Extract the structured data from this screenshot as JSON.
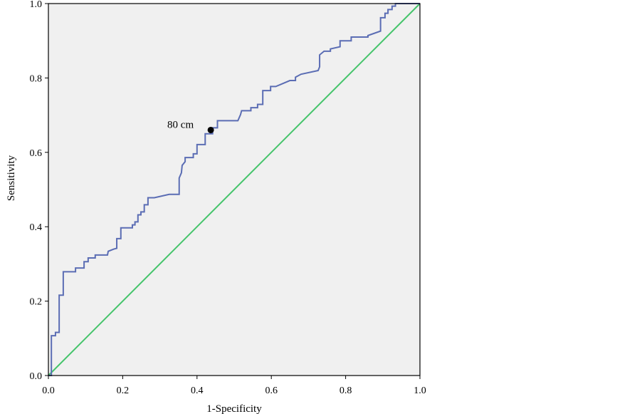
{
  "chart_data": {
    "type": "line",
    "xlabel": "1-Specificity",
    "ylabel": "Sensitivity",
    "xlim": [
      0.0,
      1.0
    ],
    "ylim": [
      0.0,
      1.0
    ],
    "x_ticks": [
      "0.0",
      "0.2",
      "0.4",
      "0.6",
      "0.8",
      "1.0"
    ],
    "y_ticks": [
      "0.0",
      "0.2",
      "0.4",
      "0.6",
      "0.8",
      "1.0"
    ],
    "grid": false,
    "plot_background": "#f0f0f0",
    "series": [
      {
        "color": "#5b6db4",
        "style": "step",
        "points": [
          [
            0.0,
            0.0
          ],
          [
            0.008,
            0.0
          ],
          [
            0.008,
            0.107
          ],
          [
            0.019,
            0.107
          ],
          [
            0.019,
            0.116
          ],
          [
            0.029,
            0.116
          ],
          [
            0.029,
            0.216
          ],
          [
            0.04,
            0.216
          ],
          [
            0.04,
            0.279
          ],
          [
            0.073,
            0.279
          ],
          [
            0.073,
            0.289
          ],
          [
            0.096,
            0.289
          ],
          [
            0.096,
            0.306
          ],
          [
            0.107,
            0.306
          ],
          [
            0.107,
            0.316
          ],
          [
            0.126,
            0.316
          ],
          [
            0.126,
            0.324
          ],
          [
            0.159,
            0.324
          ],
          [
            0.161,
            0.334
          ],
          [
            0.176,
            0.34
          ],
          [
            0.184,
            0.342
          ],
          [
            0.184,
            0.368
          ],
          [
            0.195,
            0.368
          ],
          [
            0.195,
            0.397
          ],
          [
            0.226,
            0.397
          ],
          [
            0.226,
            0.405
          ],
          [
            0.233,
            0.405
          ],
          [
            0.233,
            0.413
          ],
          [
            0.241,
            0.413
          ],
          [
            0.241,
            0.432
          ],
          [
            0.249,
            0.432
          ],
          [
            0.249,
            0.44
          ],
          [
            0.258,
            0.44
          ],
          [
            0.258,
            0.459
          ],
          [
            0.268,
            0.459
          ],
          [
            0.268,
            0.478
          ],
          [
            0.285,
            0.478
          ],
          [
            0.325,
            0.487
          ],
          [
            0.352,
            0.487
          ],
          [
            0.352,
            0.531
          ],
          [
            0.358,
            0.545
          ],
          [
            0.36,
            0.565
          ],
          [
            0.368,
            0.575
          ],
          [
            0.368,
            0.586
          ],
          [
            0.39,
            0.586
          ],
          [
            0.39,
            0.596
          ],
          [
            0.4,
            0.596
          ],
          [
            0.4,
            0.621
          ],
          [
            0.422,
            0.621
          ],
          [
            0.422,
            0.65
          ],
          [
            0.442,
            0.65
          ],
          [
            0.442,
            0.666
          ],
          [
            0.455,
            0.666
          ],
          [
            0.455,
            0.685
          ],
          [
            0.51,
            0.685
          ],
          [
            0.517,
            0.701
          ],
          [
            0.52,
            0.712
          ],
          [
            0.545,
            0.712
          ],
          [
            0.545,
            0.72
          ],
          [
            0.563,
            0.72
          ],
          [
            0.563,
            0.729
          ],
          [
            0.577,
            0.729
          ],
          [
            0.577,
            0.766
          ],
          [
            0.598,
            0.766
          ],
          [
            0.598,
            0.777
          ],
          [
            0.612,
            0.777
          ],
          [
            0.65,
            0.793
          ],
          [
            0.665,
            0.793
          ],
          [
            0.665,
            0.802
          ],
          [
            0.68,
            0.81
          ],
          [
            0.726,
            0.82
          ],
          [
            0.73,
            0.83
          ],
          [
            0.73,
            0.862
          ],
          [
            0.742,
            0.872
          ],
          [
            0.759,
            0.872
          ],
          [
            0.759,
            0.878
          ],
          [
            0.785,
            0.884
          ],
          [
            0.785,
            0.9
          ],
          [
            0.815,
            0.9
          ],
          [
            0.815,
            0.91
          ],
          [
            0.86,
            0.91
          ],
          [
            0.86,
            0.914
          ],
          [
            0.894,
            0.926
          ],
          [
            0.894,
            0.962
          ],
          [
            0.906,
            0.962
          ],
          [
            0.906,
            0.974
          ],
          [
            0.914,
            0.974
          ],
          [
            0.914,
            0.984
          ],
          [
            0.925,
            0.984
          ],
          [
            0.925,
            0.993
          ],
          [
            0.934,
            0.993
          ],
          [
            0.934,
            1.0
          ],
          [
            1.0,
            1.0
          ]
        ]
      },
      {
        "color": "#44c46a",
        "style": "line",
        "points": [
          [
            0.0,
            0.0
          ],
          [
            1.0,
            1.0
          ]
        ]
      }
    ],
    "annotations": [
      {
        "text": "80 cm",
        "x": 0.437,
        "y": 0.66,
        "marker": "filled-circle",
        "marker_color": "#000000",
        "label_side": "left"
      }
    ]
  }
}
